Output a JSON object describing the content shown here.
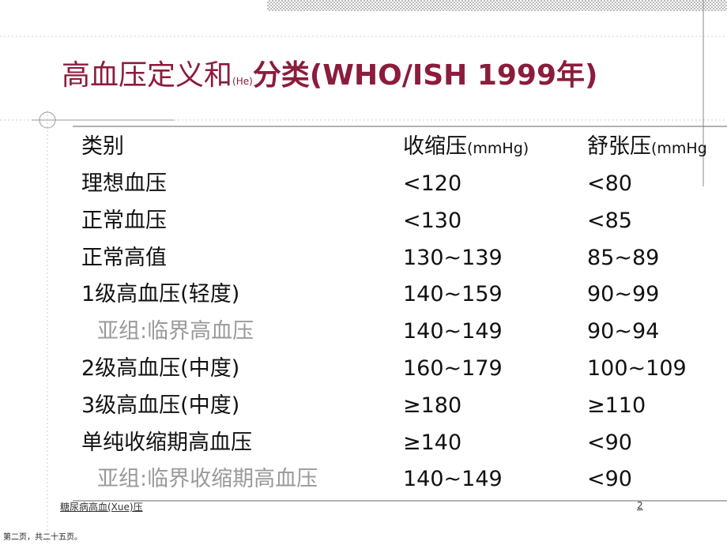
{
  "title": {
    "main": "高血压定义和",
    "small": "(He)",
    "rest": "分类(WHO/ISH 1999年)"
  },
  "table": {
    "header": [
      {
        "text": "类别"
      },
      {
        "text": "收缩压",
        "unit": "(mmHg)"
      },
      {
        "text": "舒张压",
        "unit": "(mmHg"
      }
    ],
    "rows": [
      [
        "理想血压",
        "<120",
        "<80"
      ],
      [
        "正常血压",
        "<130",
        "<85"
      ],
      [
        "正常高值",
        "130~139",
        "85~89"
      ],
      [
        "1级高血压(轻度)",
        "140~159",
        "90~99"
      ],
      [
        "亚组:临界高血压",
        "140~149",
        "90~94"
      ],
      [
        "2级高血压(中度)",
        "160~179",
        "100~109"
      ],
      [
        "3级高血压(中度)",
        "≥180",
        "≥110"
      ],
      [
        "单纯收缩期高血压",
        "≥140",
        "<90"
      ],
      [
        "亚组:临界收缩期高血压",
        "140~149",
        "<90"
      ]
    ]
  },
  "footer": {
    "link": "糖尿病高血(Xue)压",
    "page_number": "2",
    "caption": "第二页，共二十五页。"
  }
}
